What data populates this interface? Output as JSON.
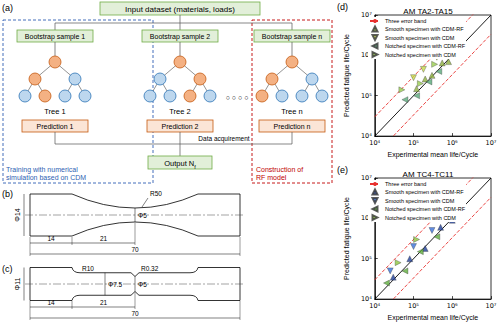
{
  "diagram": {
    "panel_a": {
      "label": "(a)",
      "input": "Input dataset (materials, loads)",
      "columns": [
        {
          "sample": "Bootstrap sample 1",
          "tree": "Tree 1",
          "prediction": "Prediction 1"
        },
        {
          "sample": "Bootstrap sample 2",
          "tree": "Tree 2",
          "prediction": "Prediction 2"
        },
        {
          "sample": "Bootstrap sample n",
          "tree": "Tree n",
          "prediction": "Prediction n"
        }
      ],
      "ellipsis": "○ ○ ○ ○",
      "data_acquirement": "Data acquirement",
      "output": {
        "text": "Output N",
        "subscript": "f"
      },
      "training": [
        "Training with numerical",
        "simulation based on CDM"
      ],
      "construction": [
        "Construction of",
        "RF model"
      ]
    },
    "panel_b": {
      "label": "(b)",
      "texts": {
        "radius": "R50",
        "grip_diameter": "Φ14",
        "gauge_diameter": "Φ5",
        "grip_length": "14",
        "transition_length": "21",
        "total_length": "70"
      }
    },
    "panel_c": {
      "label": "(c)",
      "texts": {
        "radius": "R10",
        "notch_radius": "R0.32",
        "grip_diameter": "Φ11",
        "shoulder_diameter": "Φ7.5",
        "notch_diameter": "Φ5",
        "grip_length": "14",
        "shoulder_length": "21",
        "total_length": "70"
      }
    }
  },
  "chart_data": [
    {
      "type": "scatter",
      "panel": "(d)",
      "title": "AM TA2-TA15",
      "x_label": "Experimental mean life/Cycle",
      "y_label": "Predicted fatigue life/Cycle",
      "log": true,
      "grid": false,
      "legend": "top-left",
      "xlim": [
        10000,
        10000000
      ],
      "ylim": [
        10000,
        10000000
      ],
      "xticks": [
        {
          "value": 10000,
          "label": "10⁴"
        },
        {
          "value": 100000,
          "label": "10⁵"
        },
        {
          "value": 1000000,
          "label": "10⁶"
        },
        {
          "value": 10000000,
          "label": "10⁷"
        }
      ],
      "yticks": [
        {
          "value": 10000,
          "label": "10⁴"
        },
        {
          "value": 100000,
          "label": "10⁵"
        },
        {
          "value": 1000000,
          "label": "10⁶"
        },
        {
          "value": 10000000,
          "label": "10⁷"
        }
      ],
      "error_band": {
        "name": "Three error band",
        "factor": 3,
        "color": "#e8312f",
        "line_style": "dashed"
      },
      "series": [
        {
          "name": "Smooth specimen with CDM-RF",
          "color": "#8fb03e",
          "marker": "triangle-up",
          "values": [
            [
              120000,
              150000
            ],
            [
              200000,
              260000
            ],
            [
              300000,
              320000
            ],
            [
              550000,
              650000
            ],
            [
              800000,
              700000
            ],
            [
              1100000,
              1300000
            ]
          ]
        },
        {
          "name": "Smooth specimen with CDM",
          "color": "#c6d84a",
          "marker": "triangle-down",
          "values": [
            [
              100000,
              280000
            ],
            [
              180000,
              450000
            ],
            [
              400000,
              900000
            ],
            [
              700000,
              1200000
            ]
          ]
        },
        {
          "name": "Notched specimen with CDM-RF",
          "color": "#5aaa7a",
          "marker": "triangle-left",
          "values": [
            [
              60000,
              80000
            ],
            [
              120000,
              100000
            ],
            [
              250000,
              220000
            ],
            [
              450000,
              400000
            ]
          ]
        },
        {
          "name": "Notched specimen with CDM",
          "color": "#9acd50",
          "marker": "triangle-right",
          "values": [
            [
              50000,
              140000
            ],
            [
              150000,
              200000
            ],
            [
              350000,
              600000
            ]
          ]
        }
      ]
    },
    {
      "type": "scatter",
      "panel": "(e)",
      "title": "AM TC4-TC11",
      "x_label": "Experimental mean life/Cycle",
      "y_label": "Predicted fatigue life/Cycle",
      "log": true,
      "grid": false,
      "legend": "top-left",
      "xlim": [
        10000,
        10000000
      ],
      "ylim": [
        10000,
        10000000
      ],
      "xticks": [
        {
          "value": 10000,
          "label": "10⁴"
        },
        {
          "value": 100000,
          "label": "10⁵"
        },
        {
          "value": 1000000,
          "label": "10⁶"
        },
        {
          "value": 10000000,
          "label": "10⁷"
        }
      ],
      "yticks": [
        {
          "value": 10000,
          "label": "10⁴"
        },
        {
          "value": 100000,
          "label": "10⁵"
        },
        {
          "value": 1000000,
          "label": "10⁶"
        },
        {
          "value": 10000000,
          "label": "10⁷"
        }
      ],
      "error_band": {
        "name": "Three error band",
        "factor": 3,
        "color": "#e8312f",
        "line_style": "dashed"
      },
      "series": [
        {
          "name": "Smooth specimen with CDM-RF",
          "color": "#1f3f99",
          "marker": "triangle-up",
          "values": [
            [
              30000,
              35000
            ],
            [
              80000,
              100000
            ],
            [
              200000,
              180000
            ],
            [
              500000,
              600000
            ],
            [
              1000000,
              900000
            ]
          ]
        },
        {
          "name": "Smooth specimen with CDM",
          "color": "#3a6fd8",
          "marker": "triangle-down",
          "values": [
            [
              25000,
              50000
            ],
            [
              100000,
              200000
            ],
            [
              300000,
              500000
            ],
            [
              800000,
              1300000
            ]
          ]
        },
        {
          "name": "Notched specimen with CDM-RF",
          "color": "#5fae3c",
          "marker": "triangle-left",
          "values": [
            [
              20000,
              25000
            ],
            [
              60000,
              50000
            ],
            [
              150000,
              150000
            ],
            [
              400000,
              350000
            ]
          ]
        },
        {
          "name": "Notched specimen with CDM",
          "color": "#8dc63f",
          "marker": "triangle-right",
          "values": [
            [
              40000,
              80000
            ],
            [
              120000,
              300000
            ],
            [
              600000,
              1100000
            ]
          ]
        }
      ]
    }
  ]
}
